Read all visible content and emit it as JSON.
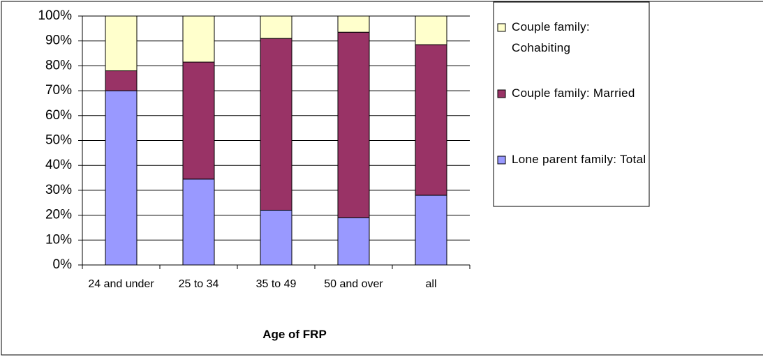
{
  "chart_data": {
    "type": "stacked_bar",
    "categories": [
      "24 and under",
      "25 to 34",
      "35 to 49",
      "50 and over",
      "all"
    ],
    "series": [
      {
        "name": "Lone parent family: Total",
        "color": "#9999ff",
        "values": [
          70,
          34.5,
          22,
          19,
          28
        ]
      },
      {
        "name": "Couple family: Married",
        "color": "#993366",
        "values": [
          8,
          47,
          69,
          74.5,
          60.5
        ]
      },
      {
        "name": "Couple family: Cohabiting",
        "color": "#ffffcc",
        "values": [
          22,
          18.5,
          9,
          6.5,
          11.5
        ]
      }
    ],
    "x_label": "Age of FRP",
    "ylim": [
      0,
      100
    ],
    "yticks": [
      {
        "value": 0,
        "label": "0%"
      },
      {
        "value": 10,
        "label": "10%"
      },
      {
        "value": 20,
        "label": "20%"
      },
      {
        "value": 30,
        "label": "30%"
      },
      {
        "value": 40,
        "label": "40%"
      },
      {
        "value": 50,
        "label": "50%"
      },
      {
        "value": 60,
        "label": "60%"
      },
      {
        "value": 70,
        "label": "70%"
      },
      {
        "value": 80,
        "label": "80%"
      },
      {
        "value": 90,
        "label": "90%"
      },
      {
        "value": 100,
        "label": "100%"
      }
    ],
    "grid": true,
    "legend": "right"
  }
}
